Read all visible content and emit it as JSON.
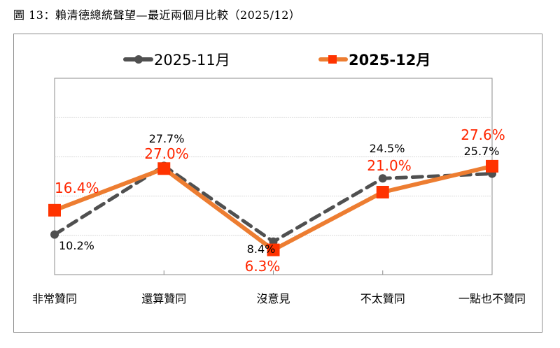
{
  "title": "圖 13：賴清德總統聲望—最近兩個月比較（2025/12）",
  "chart_data": {
    "type": "line",
    "categories": [
      "非常贊同",
      "還算贊同",
      "沒意見",
      "不太贊同",
      "一點也不贊同"
    ],
    "ylim": [
      0,
      50
    ],
    "ygrid_step": 10,
    "grid": true,
    "y_tick_labels_shown": false,
    "legend_position": "top",
    "series": [
      {
        "name": "2025-11月",
        "values": [
          10.2,
          27.7,
          8.4,
          24.5,
          25.7
        ],
        "labels": [
          "10.2%",
          "27.7%",
          "8.4%",
          "24.5%",
          "25.7%"
        ],
        "color": "#505050",
        "label_color": "#000000",
        "line_style": "dashed",
        "marker": "circle"
      },
      {
        "name": "2025-12月",
        "values": [
          16.4,
          27.0,
          6.3,
          21.0,
          27.6
        ],
        "labels": [
          "16.4%",
          "27.0%",
          "6.3%",
          "21.0%",
          "27.6%"
        ],
        "color": "#ED7D31",
        "label_color": "#FF2600",
        "marker_color": "#FF3300",
        "line_style": "solid",
        "marker": "square"
      }
    ]
  }
}
